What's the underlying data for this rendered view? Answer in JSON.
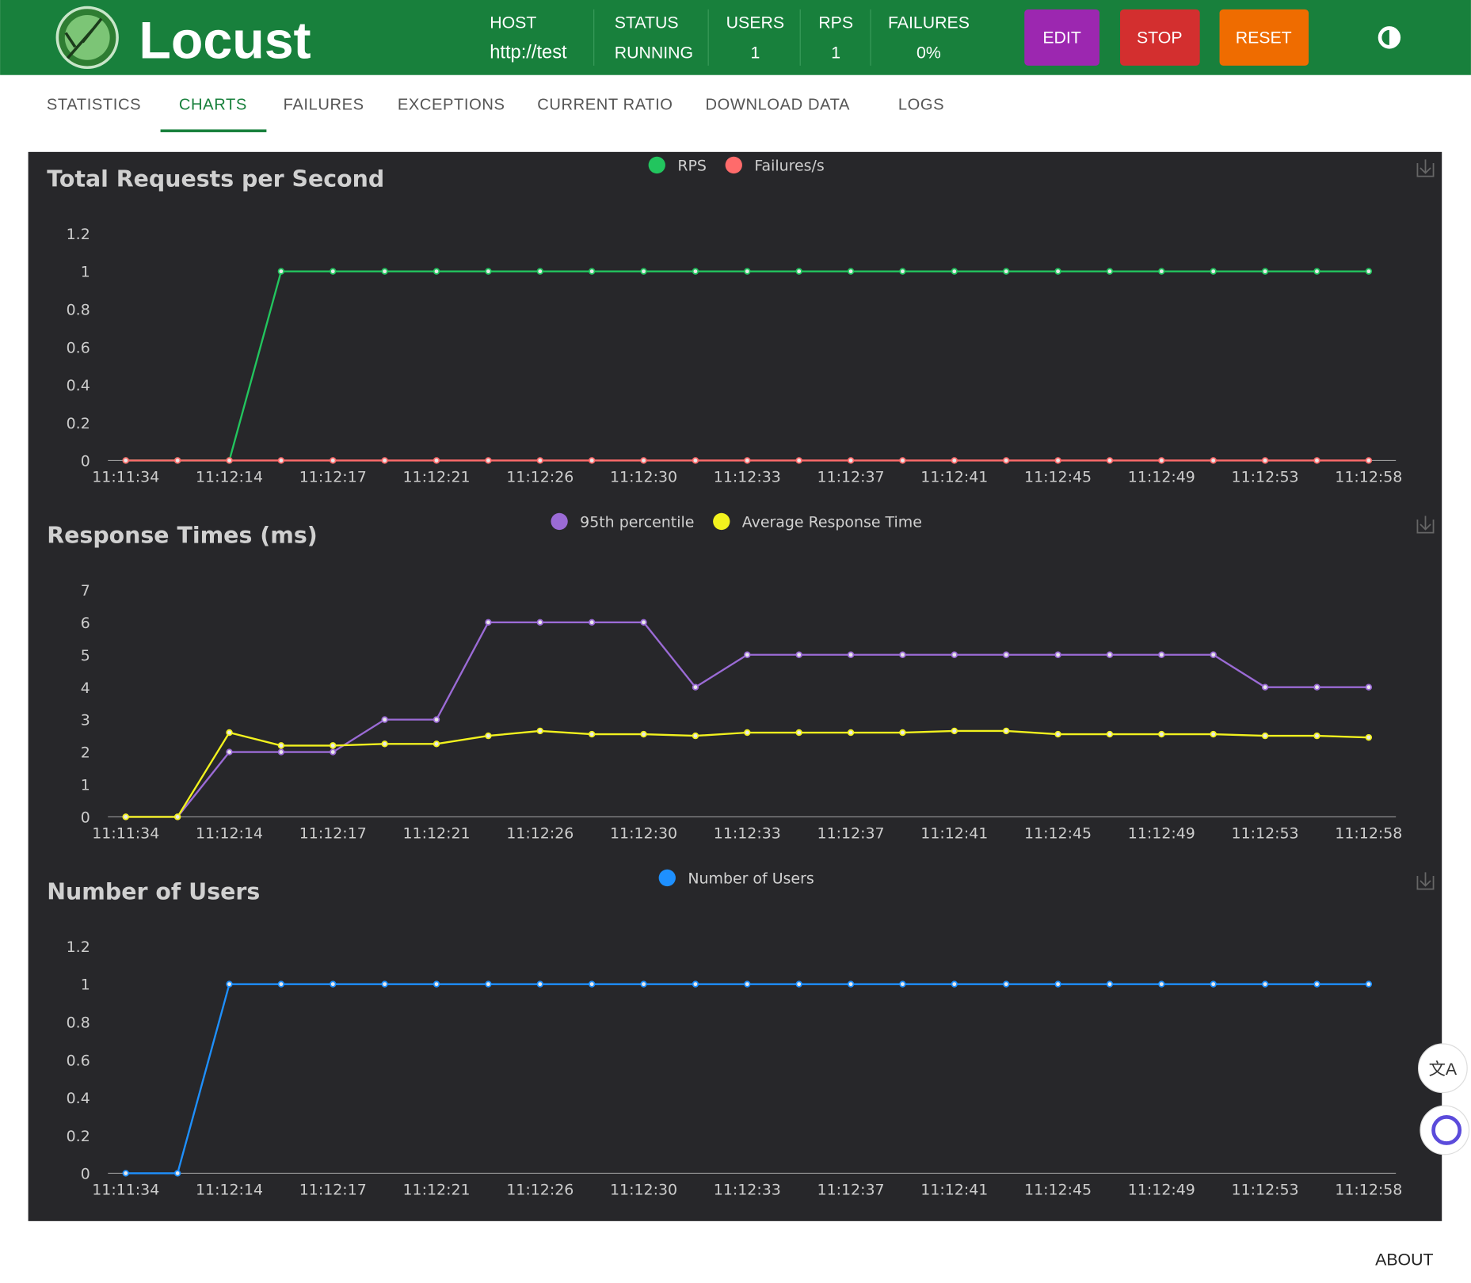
{
  "header": {
    "brand": "Locust",
    "stats": [
      {
        "label": "HOST",
        "value": "http://test"
      },
      {
        "label": "STATUS",
        "value": "RUNNING"
      },
      {
        "label": "USERS",
        "value": "1"
      },
      {
        "label": "RPS",
        "value": "1"
      },
      {
        "label": "FAILURES",
        "value": "0%"
      }
    ],
    "buttons": [
      "EDIT",
      "STOP",
      "RESET"
    ]
  },
  "tabs": [
    "STATISTICS",
    "CHARTS",
    "FAILURES",
    "EXCEPTIONS",
    "CURRENT RATIO",
    "DOWNLOAD DATA",
    "LOGS"
  ],
  "footer": {
    "about": "ABOUT"
  },
  "chart_data": [
    {
      "type": "line",
      "title": "Total Requests per Second",
      "categories": [
        "11:11:34",
        null,
        "11:12:14",
        null,
        "11:12:17",
        null,
        "11:12:21",
        null,
        "11:12:26",
        null,
        "11:12:30",
        null,
        "11:12:33",
        null,
        "11:12:37",
        null,
        "11:12:41",
        null,
        "11:12:45",
        null,
        "11:12:49",
        null,
        "11:12:53",
        null,
        "11:12:58"
      ],
      "series": [
        {
          "name": "RPS",
          "color": "#22c55e",
          "values": [
            0,
            0,
            0,
            1,
            1,
            1,
            1,
            1,
            1,
            1,
            1,
            1,
            1,
            1,
            1,
            1,
            1,
            1,
            1,
            1,
            1,
            1,
            1,
            1,
            1
          ]
        },
        {
          "name": "Failures/s",
          "color": "#ff6b6b",
          "values": [
            0,
            0,
            0,
            0,
            0,
            0,
            0,
            0,
            0,
            0,
            0,
            0,
            0,
            0,
            0,
            0,
            0,
            0,
            0,
            0,
            0,
            0,
            0,
            0,
            0
          ]
        }
      ],
      "ylim": [
        0,
        1.2
      ],
      "yticks": [
        0,
        0.2,
        0.4,
        0.6,
        0.8,
        1,
        1.2
      ]
    },
    {
      "type": "line",
      "title": "Response Times (ms)",
      "categories": [
        "11:11:34",
        null,
        "11:12:14",
        null,
        "11:12:17",
        null,
        "11:12:21",
        null,
        "11:12:26",
        null,
        "11:12:30",
        null,
        "11:12:33",
        null,
        "11:12:37",
        null,
        "11:12:41",
        null,
        "11:12:45",
        null,
        "11:12:49",
        null,
        "11:12:53",
        null,
        "11:12:58"
      ],
      "series": [
        {
          "name": "95th percentile",
          "color": "#9b6bd6",
          "values": [
            0,
            0,
            2,
            2,
            2,
            3,
            3,
            6,
            6,
            6,
            6,
            4,
            5,
            5,
            5,
            5,
            5,
            5,
            5,
            5,
            5,
            5,
            4,
            4,
            4
          ]
        },
        {
          "name": "Average Response Time",
          "color": "#f2f21e",
          "values": [
            0,
            0,
            2.6,
            2.2,
            2.2,
            2.25,
            2.25,
            2.5,
            2.65,
            2.55,
            2.55,
            2.5,
            2.6,
            2.6,
            2.6,
            2.6,
            2.65,
            2.65,
            2.55,
            2.55,
            2.55,
            2.55,
            2.5,
            2.5,
            2.45
          ]
        }
      ],
      "ylim": [
        0,
        7
      ],
      "yticks": [
        0,
        1,
        2,
        3,
        4,
        5,
        6,
        7
      ]
    },
    {
      "type": "line",
      "title": "Number of Users",
      "categories": [
        "11:11:34",
        null,
        "11:12:14",
        null,
        "11:12:17",
        null,
        "11:12:21",
        null,
        "11:12:26",
        null,
        "11:12:30",
        null,
        "11:12:33",
        null,
        "11:12:37",
        null,
        "11:12:41",
        null,
        "11:12:45",
        null,
        "11:12:49",
        null,
        "11:12:53",
        null,
        "11:12:58"
      ],
      "series": [
        {
          "name": "Number of Users",
          "color": "#1e90ff",
          "values": [
            0,
            0,
            1,
            1,
            1,
            1,
            1,
            1,
            1,
            1,
            1,
            1,
            1,
            1,
            1,
            1,
            1,
            1,
            1,
            1,
            1,
            1,
            1,
            1,
            1
          ]
        }
      ],
      "ylim": [
        0,
        1.2
      ],
      "yticks": [
        0,
        0.2,
        0.4,
        0.6,
        0.8,
        1,
        1.2
      ]
    }
  ]
}
